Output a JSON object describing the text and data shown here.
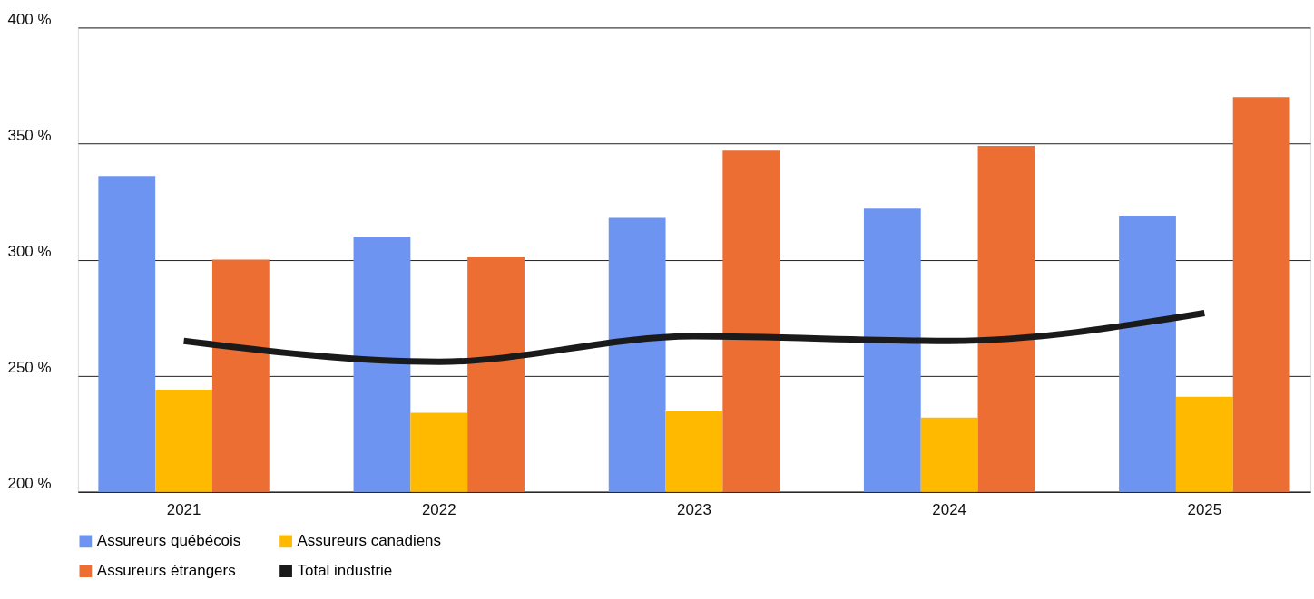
{
  "chart_data": {
    "type": "bar",
    "categories": [
      "2021",
      "2022",
      "2023",
      "2024",
      "2025"
    ],
    "series": [
      {
        "name": "Assureurs québécois",
        "color": "#6d94f0",
        "values": [
          336,
          310,
          318,
          322,
          319
        ]
      },
      {
        "name": "Assureurs canadiens",
        "color": "#ffba00",
        "values": [
          244,
          234,
          235,
          232,
          241
        ]
      },
      {
        "name": "Assureurs étrangers",
        "color": "#ed6e33",
        "values": [
          300,
          301,
          347,
          349,
          370
        ]
      },
      {
        "name": "Total industrie",
        "color": "#1a1a1a",
        "type": "line",
        "values": [
          265,
          256,
          267,
          265,
          277
        ]
      }
    ],
    "ylim": [
      200,
      400
    ],
    "yticks": [
      {
        "value": 200,
        "label": "200 %"
      },
      {
        "value": 250,
        "label": "250 %"
      },
      {
        "value": 300,
        "label": "300 %"
      },
      {
        "value": 350,
        "label": "350 %"
      },
      {
        "value": 400,
        "label": "400 %"
      }
    ],
    "grid": "y",
    "legend": "bottom"
  }
}
